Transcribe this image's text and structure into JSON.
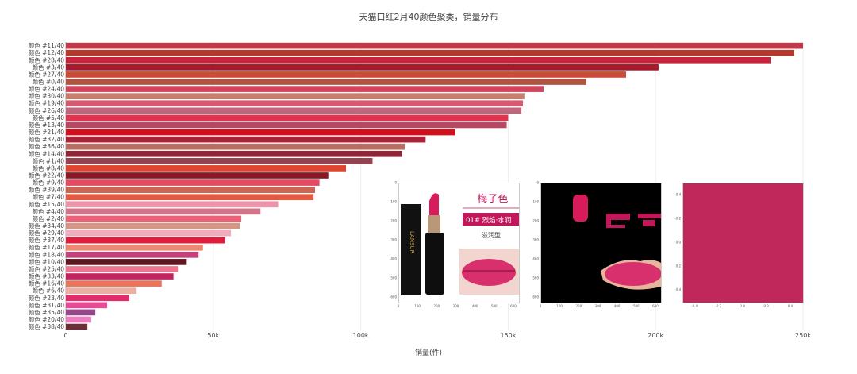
{
  "chart_data": {
    "type": "bar",
    "orientation": "horizontal",
    "title": "天猫口红2月40颜色聚类，销量分布",
    "xlabel": "销量(件)",
    "ylabel": "",
    "xlim": [
      0,
      250000
    ],
    "xticks": [
      0,
      50000,
      100000,
      150000,
      200000,
      250000
    ],
    "xtick_labels": [
      "0",
      "50k",
      "100k",
      "150k",
      "200k",
      "250k"
    ],
    "grid": true,
    "categories": [
      "颜色 #11/40",
      "颜色 #12/40",
      "颜色 #28/40",
      "颜色 #3/40",
      "颜色 #27/40",
      "颜色 #0/40",
      "颜色 #24/40",
      "颜色 #30/40",
      "颜色 #19/40",
      "颜色 #26/40",
      "颜色 #5/40",
      "颜色 #13/40",
      "颜色 #21/40",
      "颜色 #32/40",
      "颜色 #36/40",
      "颜色 #14/40",
      "颜色 #1/40",
      "颜色 #8/40",
      "颜色 #22/40",
      "颜色 #9/40",
      "颜色 #39/40",
      "颜色 #7/40",
      "颜色 #15/40",
      "颜色 #4/40",
      "颜色 #2/40",
      "颜色 #34/40",
      "颜色 #29/40",
      "颜色 #37/40",
      "颜色 #17/40",
      "颜色 #18/40",
      "颜色 #10/40",
      "颜色 #25/40",
      "颜色 #33/40",
      "颜色 #16/40",
      "颜色 #6/40",
      "颜色 #23/40",
      "颜色 #31/40",
      "颜色 #35/40",
      "颜色 #20/40",
      "颜色 #38/40"
    ],
    "values": [
      250000,
      247000,
      239000,
      201000,
      190000,
      176500,
      162000,
      155500,
      155000,
      154500,
      150000,
      149500,
      132000,
      122000,
      115000,
      114000,
      104000,
      95000,
      89000,
      86000,
      84500,
      84000,
      72000,
      66000,
      59500,
      59000,
      56000,
      54000,
      46500,
      45000,
      41000,
      38000,
      36500,
      32500,
      24000,
      21500,
      14000,
      10000,
      8600,
      7300
    ],
    "colors": [
      "#c0394b",
      "#b5392b",
      "#c8233b",
      "#a8172a",
      "#cc4a38",
      "#b05442",
      "#d14460",
      "#c97e6e",
      "#d45a72",
      "#c0657c",
      "#e2344f",
      "#b84862",
      "#d0101c",
      "#a82238",
      "#b86c62",
      "#8e2638",
      "#94424e",
      "#e0442e",
      "#8c1826",
      "#e44a62",
      "#cc6452",
      "#e45a40",
      "#ee94aa",
      "#d07488",
      "#ec6078",
      "#d49684",
      "#f2aabd",
      "#e21c3c",
      "#ea8872",
      "#c8407a",
      "#5e1820",
      "#ec7690",
      "#c22460",
      "#ec7258",
      "#eab0a0",
      "#e42c6a",
      "#e64c94",
      "#944888",
      "#ec7ec0",
      "#6a3038"
    ]
  },
  "insets": [
    {
      "text_title": "梅子色",
      "text_shade": "01# 烈焰·水润",
      "text_type": "滋润型",
      "brand": "LANSUR",
      "xticks": [
        "0",
        "100",
        "200",
        "300",
        "400",
        "500",
        "600"
      ],
      "yticks": [
        "0",
        "100",
        "200",
        "300",
        "400",
        "500",
        "600"
      ]
    },
    {
      "xticks": [
        "0",
        "100",
        "200",
        "300",
        "400",
        "500",
        "600"
      ],
      "yticks": [
        "0",
        "100",
        "200",
        "300",
        "400",
        "500",
        "600"
      ]
    },
    {
      "color": "#c0275a",
      "xticks": [
        "-0.4",
        "-0.2",
        "0.0",
        "0.2",
        "0.4"
      ],
      "yticks": [
        "-0.4",
        "-0.2",
        "0.0",
        "0.2",
        "0.4"
      ]
    }
  ]
}
